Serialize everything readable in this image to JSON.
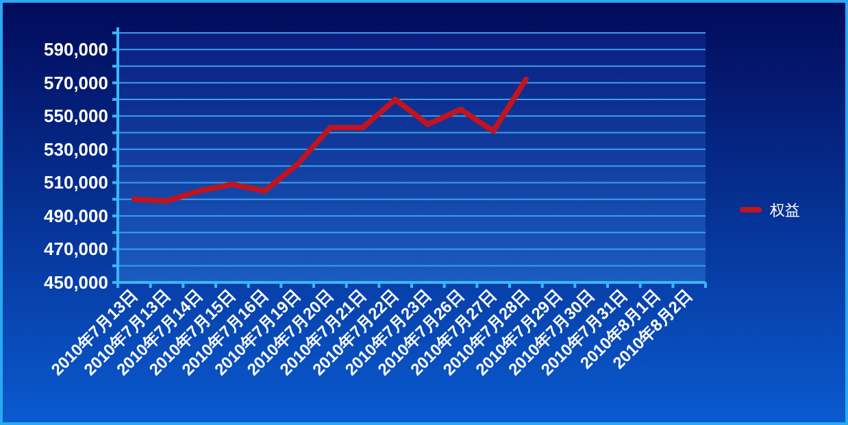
{
  "chart_data": {
    "type": "line",
    "categories": [
      "2010年7月13日",
      "2010年7月13日",
      "2010年7月14日",
      "2010年7月15日",
      "2010年7月16日",
      "2010年7月19日",
      "2010年7月20日",
      "2010年7月21日",
      "2010年7月22日",
      "2010年7月23日",
      "2010年7月26日",
      "2010年7月27日",
      "2010年7月28日",
      "2010年7月29日",
      "2010年7月30日",
      "2010年7月31日",
      "2010年8月1日",
      "2010年8月2日"
    ],
    "series": [
      {
        "name": "权益",
        "color": "#c0141e",
        "values": [
          500000,
          499000,
          505000,
          509000,
          505000,
          521000,
          543000,
          543000,
          560000,
          545000,
          554000,
          541000,
          572000,
          null,
          null,
          null,
          null,
          null
        ]
      }
    ],
    "ylim": [
      450000,
      600000
    ],
    "yticks": [
      {
        "value": 450000,
        "label": "450,000"
      },
      {
        "value": 460000,
        "label": null
      },
      {
        "value": 470000,
        "label": "470,000"
      },
      {
        "value": 480000,
        "label": null
      },
      {
        "value": 490000,
        "label": "490,000"
      },
      {
        "value": 500000,
        "label": null
      },
      {
        "value": 510000,
        "label": "510,000"
      },
      {
        "value": 520000,
        "label": null
      },
      {
        "value": 530000,
        "label": "530,000"
      },
      {
        "value": 540000,
        "label": null
      },
      {
        "value": 550000,
        "label": "550,000"
      },
      {
        "value": 560000,
        "label": null
      },
      {
        "value": 570000,
        "label": "570,000"
      },
      {
        "value": 580000,
        "label": null
      },
      {
        "value": 590000,
        "label": "590,000"
      },
      {
        "value": 600000,
        "label": null
      }
    ],
    "grid": "y",
    "legend": "right",
    "marker": "none",
    "line_style": "solid"
  }
}
